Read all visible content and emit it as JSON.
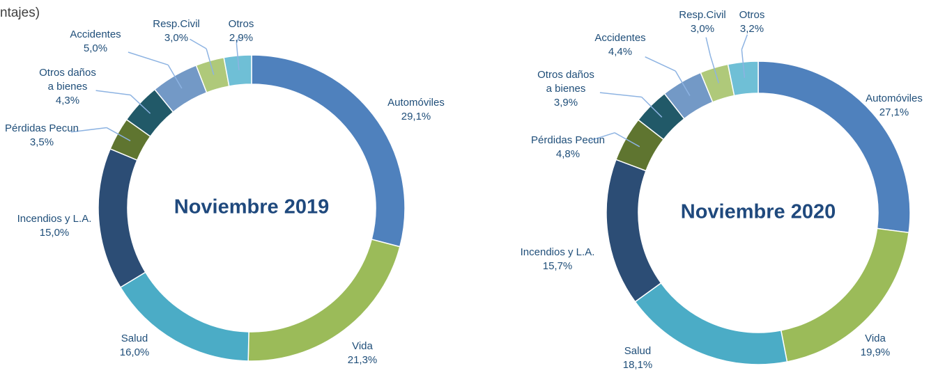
{
  "header": {
    "subtitle": "ntajes)"
  },
  "chart_data": [
    {
      "type": "donut",
      "title": "Noviembre 2019",
      "categories": [
        "Automóviles",
        "Vida",
        "Salud",
        "Incendios y L.A.",
        "Pérdidas Pecun",
        "Otros daños a bienes",
        "Accidentes",
        "Resp.Civil",
        "Otros"
      ],
      "values": [
        29.1,
        21.3,
        16.0,
        15.0,
        3.5,
        4.3,
        5.0,
        3.0,
        2.9
      ],
      "value_labels": [
        "29,1%",
        "21,3%",
        "16,0%",
        "15,0%",
        "3,5%",
        "4,3%",
        "5,0%",
        "3,0%",
        "2,9%"
      ],
      "colors": [
        "#4f81bd",
        "#9bbb59",
        "#4bacc6",
        "#2c4d75",
        "#5f7530",
        "#215968",
        "#7399c6",
        "#afc97a",
        "#6fbfd6"
      ]
    },
    {
      "type": "donut",
      "title": "Noviembre 2020",
      "categories": [
        "Automóviles",
        "Vida",
        "Salud",
        "Incendios y L.A.",
        "Pérdidas Pecun",
        "Otros daños a bienes",
        "Accidentes",
        "Resp.Civil",
        "Otros"
      ],
      "values": [
        27.1,
        19.9,
        18.1,
        15.7,
        4.8,
        3.9,
        4.4,
        3.0,
        3.2
      ],
      "value_labels": [
        "27,1%",
        "19,9%",
        "18,1%",
        "15,7%",
        "4,8%",
        "3,9%",
        "4,4%",
        "3,0%",
        "3,2%"
      ],
      "colors": [
        "#4f81bd",
        "#9bbb59",
        "#4bacc6",
        "#2c4d75",
        "#5f7530",
        "#215968",
        "#7399c6",
        "#afc97a",
        "#6fbfd6"
      ]
    }
  ]
}
